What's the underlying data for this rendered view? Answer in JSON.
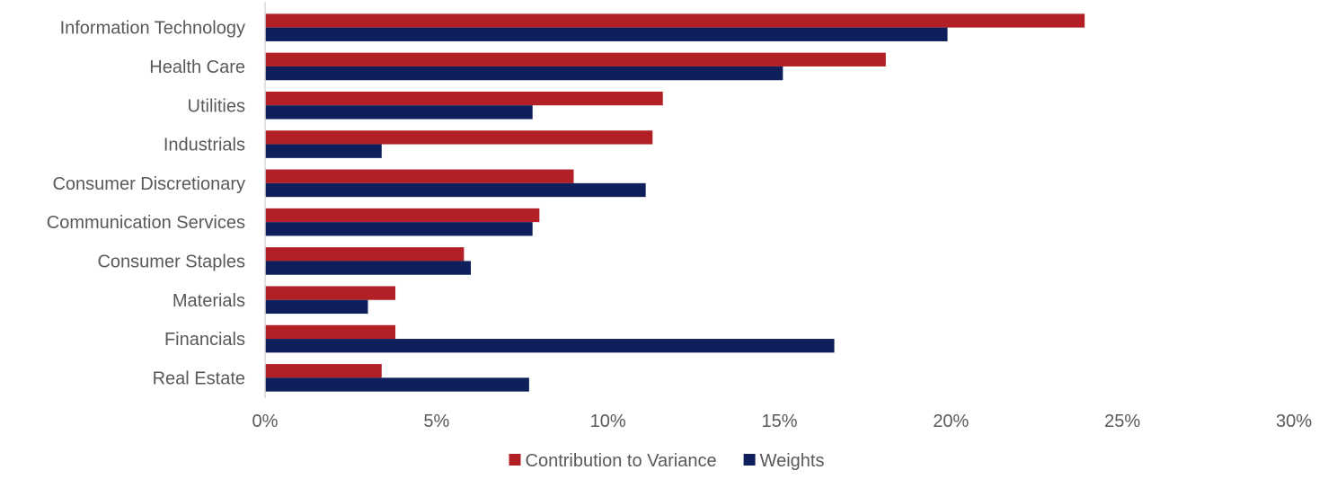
{
  "chart_data": {
    "type": "bar",
    "orientation": "horizontal",
    "categories": [
      "Information Technology",
      "Health Care",
      "Utilities",
      "Industrials",
      "Consumer Discretionary",
      "Communication Services",
      "Consumer Staples",
      "Materials",
      "Financials",
      "Real Estate"
    ],
    "series": [
      {
        "name": "Contribution to Variance",
        "color": "#B22025",
        "values": [
          23.9,
          18.1,
          11.6,
          11.3,
          9.0,
          8.0,
          5.8,
          3.8,
          3.8,
          3.4
        ]
      },
      {
        "name": "Weights",
        "color": "#0E1F5B",
        "values": [
          19.9,
          15.1,
          7.8,
          3.4,
          11.1,
          7.8,
          6.0,
          3.0,
          16.6,
          7.7
        ]
      }
    ],
    "xlim": [
      0,
      30
    ],
    "xticks": [
      "0%",
      "5%",
      "10%",
      "15%",
      "20%",
      "25%",
      "30%"
    ],
    "grid": false,
    "legend_position": "bottom"
  }
}
